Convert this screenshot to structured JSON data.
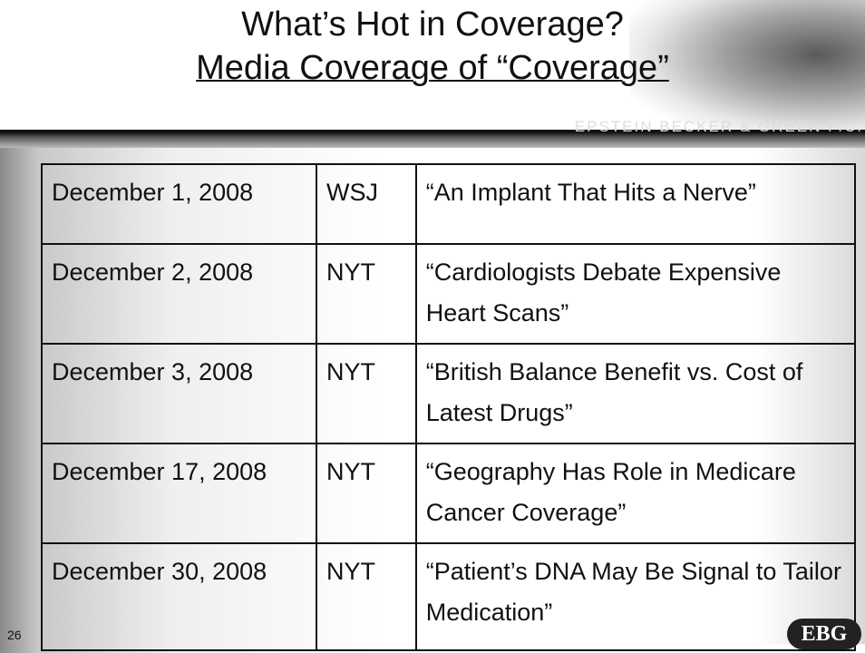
{
  "header": {
    "title_line1": "What’s Hot in Coverage?",
    "title_line2": "Media Coverage of “Coverage”",
    "firm": "EPSTEIN BECKER & GREEN P.C."
  },
  "table": {
    "rows": [
      [
        "December 1, 2008",
        "WSJ",
        "“An Implant That Hits a Nerve”"
      ],
      [
        "December 2, 2008",
        "NYT",
        "“Cardiologists Debate Expensive Heart Scans”"
      ],
      [
        "December 3, 2008",
        "NYT",
        "“British Balance Benefit vs. Cost of Latest Drugs”"
      ],
      [
        "December 17, 2008",
        "NYT",
        "“Geography Has Role in Medicare Cancer Coverage”"
      ],
      [
        "December 30, 2008",
        "NYT",
        "“Patient’s DNA May Be Signal to Tailor Medication”"
      ]
    ]
  },
  "footer": {
    "page_number": "26",
    "logo": "EBG"
  }
}
